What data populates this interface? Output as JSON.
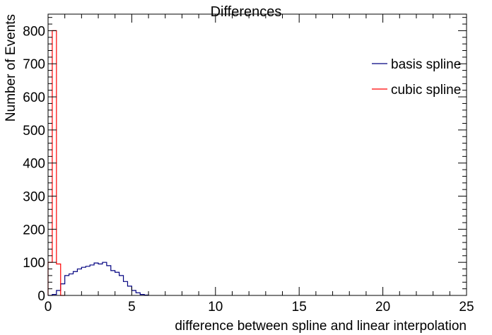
{
  "chart_data": {
    "type": "histogram",
    "title": "Differences",
    "xlabel": "difference between spline and linear interpolation",
    "ylabel": "Number of Events",
    "xlim": [
      0,
      25
    ],
    "ylim": [
      0,
      850
    ],
    "x_ticks": [
      "0",
      "5",
      "10",
      "15",
      "20",
      "25"
    ],
    "y_ticks": [
      "0",
      "100",
      "200",
      "300",
      "400",
      "500",
      "600",
      "700",
      "800"
    ],
    "bin_width": 0.25,
    "legend_placement": "top-right",
    "series": [
      {
        "name": "basis spline",
        "color": "#000080",
        "bins_start": 0,
        "values": [
          0,
          3,
          15,
          35,
          60,
          65,
          72,
          80,
          85,
          88,
          92,
          98,
          95,
          100,
          90,
          75,
          70,
          60,
          42,
          28,
          15,
          8,
          3,
          1
        ]
      },
      {
        "name": "cubic spline",
        "color": "#ff0000",
        "bins_start": 0,
        "values": [
          100,
          800,
          95,
          0
        ]
      }
    ]
  }
}
